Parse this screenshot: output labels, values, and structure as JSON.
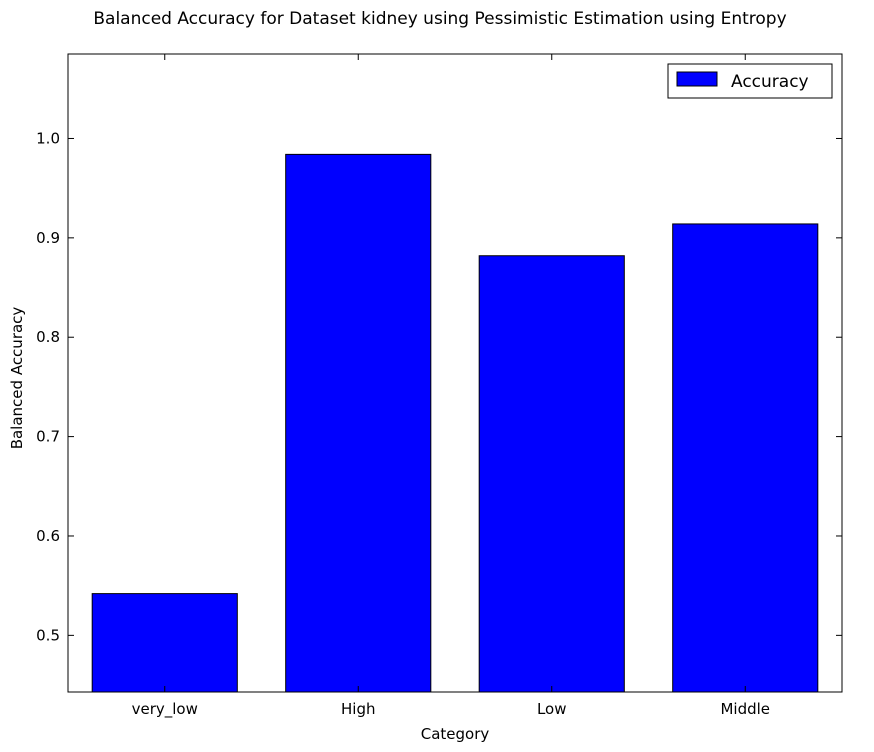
{
  "chart_data": {
    "type": "bar",
    "title": "Balanced Accuracy for Dataset kidney using Pessimistic Estimation using Entropy",
    "xlabel": "Category",
    "ylabel": "Balanced Accuracy",
    "categories": [
      "very_low",
      "High",
      "Low",
      "Middle"
    ],
    "series": [
      {
        "name": "Accuracy",
        "values": [
          0.542,
          0.984,
          0.882,
          0.914
        ],
        "color": "#0000ff"
      }
    ],
    "ylim": [
      0.443,
      1.085
    ],
    "yticks": [
      0.5,
      0.6,
      0.7,
      0.8,
      0.9,
      1.0
    ],
    "ytick_labels": [
      "0.5",
      "0.6",
      "0.7",
      "0.8",
      "0.9",
      "1.0"
    ],
    "grid": false,
    "legend_position": "top-right"
  }
}
